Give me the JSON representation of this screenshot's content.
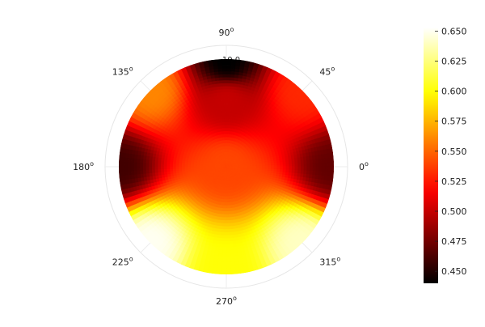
{
  "chart_data": {
    "type": "heatmap",
    "subtype": "polar-surface",
    "title": "",
    "angle_ticks": [
      {
        "angle": 0,
        "label": "0"
      },
      {
        "angle": 45,
        "label": "45"
      },
      {
        "angle": 90,
        "label": "90"
      },
      {
        "angle": 135,
        "label": "135"
      },
      {
        "angle": 180,
        "label": "180"
      },
      {
        "angle": 225,
        "label": "225"
      },
      {
        "angle": 270,
        "label": "270"
      },
      {
        "angle": 315,
        "label": "315"
      }
    ],
    "angle_unit_symbol": "o",
    "radial_tick_label": "10.0",
    "colormap": "hot",
    "colorbar": {
      "min": 0.44,
      "max": 0.653,
      "ticks": [
        0.45,
        0.475,
        0.5,
        0.525,
        0.55,
        0.575,
        0.6,
        0.625,
        0.65
      ],
      "tick_labels": [
        "0.450",
        "0.475",
        "0.500",
        "0.525",
        "0.550",
        "0.575",
        "0.600",
        "0.625",
        "0.650"
      ]
    },
    "value_samples": [
      {
        "theta": 90,
        "r": 1.0,
        "value": 0.44
      },
      {
        "theta": 90,
        "r": 0.6,
        "value": 0.5
      },
      {
        "theta": 0,
        "r": 1.0,
        "value": 0.47
      },
      {
        "theta": 180,
        "r": 1.0,
        "value": 0.46
      },
      {
        "theta": 0,
        "r": 0.0,
        "value": 0.54
      },
      {
        "theta": 270,
        "r": 1.0,
        "value": 0.6
      },
      {
        "theta": 225,
        "r": 1.0,
        "value": 0.65
      },
      {
        "theta": 315,
        "r": 1.0,
        "value": 0.64
      },
      {
        "theta": 135,
        "r": 1.0,
        "value": 0.56
      },
      {
        "theta": 45,
        "r": 1.0,
        "value": 0.53
      }
    ]
  }
}
